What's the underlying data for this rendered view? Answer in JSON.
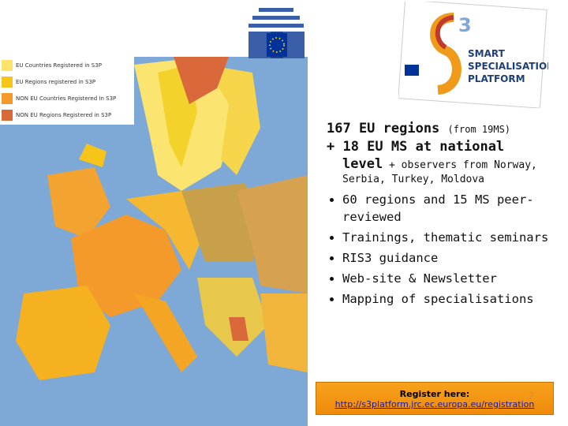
{
  "legend": [
    "EU Countries Registered in S3P",
    "EU Regions registered in S3P",
    "NON EU Countries Registered In S3P",
    "NON EU Regions Registered in S3P"
  ],
  "logo": {
    "number": "3",
    "lines": [
      "SMART",
      "SPECIALISATION",
      "PLATFORM"
    ]
  },
  "content": {
    "heading1": "167 EU regions",
    "heading1_note": "(from 19MS)",
    "heading2": "+ 18 EU MS at national",
    "heading3": "level",
    "observers": "+ observers from Norway, Serbia, Turkey, Moldova",
    "bullets": [
      "60 regions and 15 MS peer-reviewed",
      "Trainings, thematic seminars",
      "RIS3 guidance",
      "Web-site & Newsletter",
      "Mapping of specialisations"
    ]
  },
  "register": {
    "label": "Register here:",
    "url": "http://s3platform.jrc.ec.europa.eu/registration"
  },
  "page_number": "7"
}
